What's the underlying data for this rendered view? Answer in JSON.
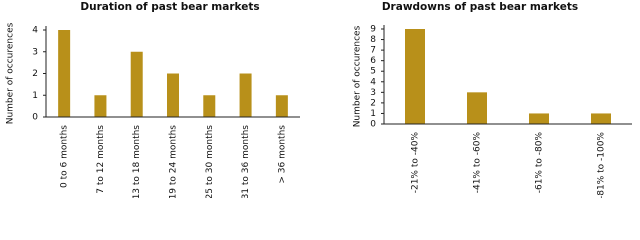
{
  "chart_data": [
    {
      "type": "bar",
      "title": "Duration of past bear markets",
      "y_label": "Number of occurences",
      "categories": [
        "0 to 6 months",
        "7 to 12 months",
        "13 to 18 months",
        "19 to 24 months",
        "25 to 30 months",
        "31 to 36 months",
        "> 36 months"
      ],
      "values": [
        4,
        1,
        3,
        2,
        1,
        2,
        1
      ],
      "color": "#b8901a",
      "ylim": [
        0,
        4
      ],
      "yticks": [
        0,
        1,
        2,
        3,
        4
      ],
      "grid": false
    },
    {
      "type": "bar",
      "title": "Drawdowns of past bear markets",
      "y_label": "Number of occurences",
      "categories": [
        "-21% to -40%",
        "-41% to -60%",
        "-61% to -80%",
        "-81% to -100%"
      ],
      "values": [
        9,
        3,
        1,
        1
      ],
      "color": "#b8901a",
      "ylim": [
        0,
        9
      ],
      "yticks": [
        0,
        1,
        2,
        3,
        4,
        5,
        6,
        7,
        8,
        9
      ],
      "grid": false
    }
  ]
}
